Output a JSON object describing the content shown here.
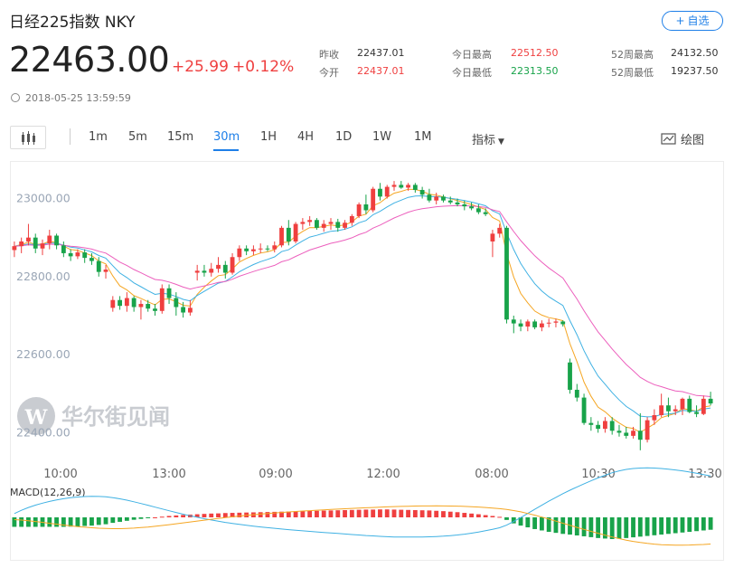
{
  "header": {
    "title": "日经225指数 NKY",
    "add_button": "自选",
    "price": "22463.00",
    "change": "+25.99",
    "change_pct": "+0.12%",
    "timestamp": "2018-05-25 13:59:59"
  },
  "stats": {
    "prev_close_label": "昨收",
    "prev_close": "22437.01",
    "open_label": "今开",
    "open": "22437.01",
    "high_label": "今日最高",
    "high": "22512.50",
    "low_label": "今日最低",
    "low": "22313.50",
    "w52_high_label": "52周最高",
    "w52_high": "24132.50",
    "w52_low_label": "52周最低",
    "w52_low": "19237.50"
  },
  "toolbar": {
    "intervals": [
      "1m",
      "5m",
      "15m",
      "30m",
      "1H",
      "4H",
      "1D",
      "1W",
      "1M"
    ],
    "active_interval": "30m",
    "indicator_label": "指标",
    "draw_label": "绘图"
  },
  "watermark": "华尔街见闻",
  "colors": {
    "up": "#ef3f3f",
    "down": "#18a34a",
    "ma_short": "#f5a623",
    "ma_mid": "#3fb1e3",
    "ma_long": "#ec5fbd",
    "accent": "#1e7fe8"
  },
  "chart_data": {
    "type": "candlestick",
    "ylim": [
      22350,
      23080
    ],
    "yticks": [
      "23000.00",
      "22800.00",
      "22600.00",
      "22400.00"
    ],
    "x_tick_labels": [
      "10:00",
      "13:00",
      "09:00",
      "12:00",
      "08:00",
      "10:30",
      "13:30"
    ],
    "candles": [
      [
        22868,
        22890,
        22850,
        22878
      ],
      [
        22878,
        22900,
        22860,
        22890
      ],
      [
        22890,
        22935,
        22880,
        22900
      ],
      [
        22900,
        22910,
        22860,
        22872
      ],
      [
        22872,
        22895,
        22855,
        22885
      ],
      [
        22885,
        22920,
        22870,
        22905
      ],
      [
        22905,
        22910,
        22870,
        22880
      ],
      [
        22880,
        22890,
        22850,
        22860
      ],
      [
        22860,
        22870,
        22840,
        22852
      ],
      [
        22852,
        22870,
        22845,
        22862
      ],
      [
        22862,
        22870,
        22835,
        22848
      ],
      [
        22848,
        22860,
        22830,
        22840
      ],
      [
        22840,
        22850,
        22800,
        22812
      ],
      [
        22812,
        22830,
        22795,
        22818
      ],
      [
        22720,
        22750,
        22710,
        22740
      ],
      [
        22740,
        22750,
        22715,
        22725
      ],
      [
        22725,
        22760,
        22710,
        22745
      ],
      [
        22745,
        22750,
        22710,
        22722
      ],
      [
        22722,
        22740,
        22690,
        22730
      ],
      [
        22730,
        22740,
        22710,
        22718
      ],
      [
        22718,
        22730,
        22700,
        22712
      ],
      [
        22712,
        22780,
        22705,
        22770
      ],
      [
        22770,
        22780,
        22730,
        22745
      ],
      [
        22745,
        22760,
        22700,
        22722
      ],
      [
        22722,
        22735,
        22695,
        22708
      ],
      [
        22708,
        22740,
        22700,
        22720
      ],
      [
        22810,
        22830,
        22790,
        22815
      ],
      [
        22815,
        22830,
        22800,
        22810
      ],
      [
        22810,
        22835,
        22800,
        22820
      ],
      [
        22820,
        22850,
        22810,
        22830
      ],
      [
        22830,
        22840,
        22795,
        22810
      ],
      [
        22810,
        22860,
        22805,
        22850
      ],
      [
        22850,
        22880,
        22840,
        22872
      ],
      [
        22872,
        22880,
        22855,
        22865
      ],
      [
        22865,
        22880,
        22855,
        22870
      ],
      [
        22870,
        22885,
        22860,
        22872
      ],
      [
        22872,
        22880,
        22865,
        22870
      ],
      [
        22870,
        22890,
        22862,
        22880
      ],
      [
        22880,
        22930,
        22875,
        22925
      ],
      [
        22925,
        22945,
        22880,
        22890
      ],
      [
        22890,
        22940,
        22885,
        22935
      ],
      [
        22935,
        22950,
        22920,
        22940
      ],
      [
        22940,
        22955,
        22930,
        22945
      ],
      [
        22945,
        22950,
        22920,
        22925
      ],
      [
        22925,
        22945,
        22915,
        22935
      ],
      [
        22935,
        22950,
        22920,
        22940
      ],
      [
        22940,
        22948,
        22915,
        22925
      ],
      [
        22925,
        22945,
        22920,
        22938
      ],
      [
        22938,
        22960,
        22930,
        22955
      ],
      [
        22955,
        22990,
        22950,
        22985
      ],
      [
        22985,
        23010,
        22960,
        22970
      ],
      [
        22970,
        23030,
        22965,
        23025
      ],
      [
        23025,
        23040,
        22995,
        23005
      ],
      [
        23005,
        23035,
        23000,
        23030
      ],
      [
        23030,
        23045,
        23020,
        23035
      ],
      [
        23035,
        23045,
        23025,
        23028
      ],
      [
        23028,
        23040,
        23020,
        23035
      ],
      [
        23035,
        23040,
        23015,
        23022
      ],
      [
        23022,
        23030,
        23000,
        23010
      ],
      [
        23010,
        23025,
        22990,
        22995
      ],
      [
        22995,
        23015,
        22985,
        23005
      ],
      [
        23005,
        23010,
        22990,
        22995
      ],
      [
        22995,
        23005,
        22985,
        22990
      ],
      [
        22990,
        23000,
        22980,
        22985
      ],
      [
        22985,
        22995,
        22970,
        22980
      ],
      [
        22980,
        22990,
        22970,
        22975
      ],
      [
        22975,
        22985,
        22960,
        22965
      ],
      [
        22965,
        22975,
        22955,
        22960
      ],
      [
        22890,
        22920,
        22850,
        22910
      ],
      [
        22910,
        22935,
        22900,
        22925
      ],
      [
        22925,
        22930,
        22680,
        22690
      ],
      [
        22690,
        22700,
        22655,
        22680
      ],
      [
        22680,
        22690,
        22660,
        22672
      ],
      [
        22672,
        22690,
        22660,
        22685
      ],
      [
        22685,
        22690,
        22665,
        22670
      ],
      [
        22670,
        22688,
        22660,
        22680
      ],
      [
        22680,
        22692,
        22670,
        22682
      ],
      [
        22682,
        22692,
        22670,
        22685
      ],
      [
        22685,
        22688,
        22672,
        22678
      ],
      [
        22580,
        22590,
        22500,
        22510
      ],
      [
        22510,
        22525,
        22480,
        22490
      ],
      [
        22490,
        22500,
        22420,
        22425
      ],
      [
        22425,
        22440,
        22405,
        22420
      ],
      [
        22420,
        22430,
        22400,
        22410
      ],
      [
        22410,
        22440,
        22400,
        22430
      ],
      [
        22430,
        22440,
        22395,
        22405
      ],
      [
        22405,
        22420,
        22390,
        22400
      ],
      [
        22400,
        22415,
        22385,
        22392
      ],
      [
        22392,
        22415,
        22385,
        22405
      ],
      [
        22405,
        22450,
        22355,
        22382
      ],
      [
        22382,
        22440,
        22375,
        22432
      ],
      [
        22432,
        22460,
        22420,
        22445
      ],
      [
        22445,
        22500,
        22440,
        22470
      ],
      [
        22470,
        22490,
        22440,
        22455
      ],
      [
        22455,
        22470,
        22445,
        22460
      ],
      [
        22460,
        22490,
        22445,
        22487
      ],
      [
        22487,
        22495,
        22450,
        22453
      ],
      [
        22453,
        22470,
        22440,
        22448
      ],
      [
        22448,
        22495,
        22445,
        22487
      ],
      [
        22487,
        22505,
        22470,
        22475
      ]
    ],
    "macd_label": "MACD(12,26,9)",
    "macd_hist": [
      -5.5,
      -5.5,
      -5.5,
      -5.5,
      -5.5,
      -5.5,
      -5.5,
      -5.5,
      -5.4,
      -5.3,
      -5.0,
      -4.8,
      -4.4,
      -4.0,
      -3.2,
      -2.6,
      -2.0,
      -1.4,
      -0.9,
      -0.4,
      0.0,
      0.4,
      0.8,
      1.1,
      1.4,
      1.6,
      1.8,
      2.0,
      2.2,
      2.3,
      2.5,
      2.6,
      2.7,
      2.8,
      2.9,
      3.0,
      3.1,
      3.2,
      3.3,
      3.4,
      3.5,
      3.6,
      3.7,
      3.8,
      3.9,
      4.0,
      4.1,
      4.2,
      4.3,
      4.4,
      4.5,
      4.5,
      4.6,
      4.6,
      4.5,
      4.4,
      4.3,
      4.2,
      4.1,
      4.0,
      3.8,
      3.6,
      3.3,
      3.0,
      2.6,
      2.2,
      1.8,
      1.3,
      0.8,
      0.3,
      -1.5,
      -3.5,
      -4.8,
      -5.8,
      -6.8,
      -7.6,
      -8.4,
      -9.0,
      -9.6,
      -10.0,
      -10.5,
      -11.0,
      -11.5,
      -12.0,
      -12.3,
      -12.6,
      -12.4,
      -12.0,
      -11.6,
      -11.2,
      -10.8,
      -10.4,
      -10.0,
      -9.6,
      -9.2,
      -8.8,
      -8.4,
      -8.0,
      -7.6,
      -7.2
    ]
  }
}
